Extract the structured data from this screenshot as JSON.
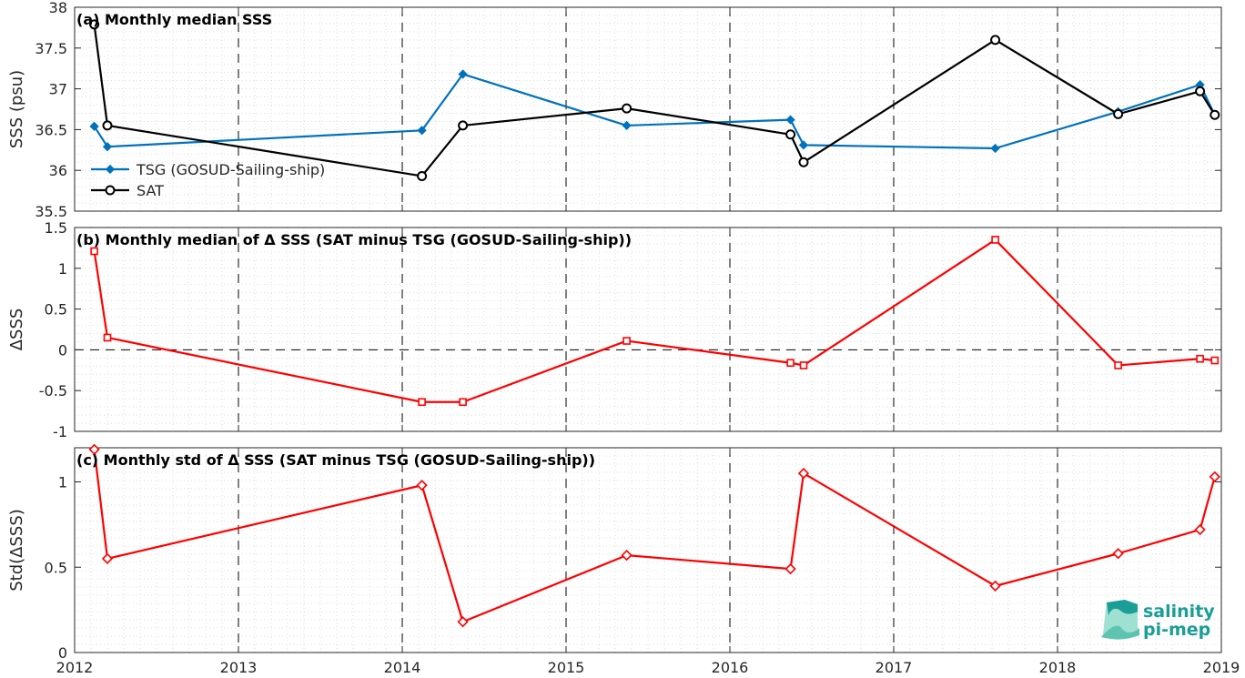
{
  "logo": {
    "line1": "salinity",
    "line2": "pi-mep"
  },
  "colors": {
    "tsg": "#0072BD",
    "sat": "#000000",
    "delta": "#FF0000",
    "logo": "#1a9e96"
  },
  "chart_data": [
    {
      "type": "line",
      "title": "(a) Monthly median SSS",
      "ylabel": "SSS (psu)",
      "xlim": [
        2012,
        2019
      ],
      "ylim": [
        35.5,
        38
      ],
      "yticks": [
        35.5,
        36,
        36.5,
        37,
        37.5,
        38
      ],
      "ytick_labels": [
        "35.5",
        "36",
        "36.5",
        "37",
        "37.5",
        "38"
      ],
      "grid": true,
      "legend": "middle-left",
      "series": [
        {
          "name": "TSG (GOSUD-Sailing-ship)",
          "marker": "diamond-filled",
          "x": [
            2012.12,
            2012.2,
            2014.12,
            2014.37,
            2015.37,
            2016.37,
            2016.45,
            2017.62,
            2018.37,
            2018.87,
            2018.96
          ],
          "y": [
            36.54,
            36.29,
            36.49,
            37.18,
            36.55,
            36.62,
            36.31,
            36.27,
            36.72,
            37.05,
            36.68
          ]
        },
        {
          "name": "SAT",
          "marker": "circle-open",
          "x": [
            2012.12,
            2012.2,
            2014.12,
            2014.37,
            2015.37,
            2016.37,
            2016.45,
            2017.62,
            2018.37,
            2018.87,
            2018.96
          ],
          "y": [
            37.79,
            36.55,
            35.93,
            36.55,
            36.76,
            36.44,
            36.1,
            37.6,
            36.69,
            36.97,
            36.68
          ]
        }
      ]
    },
    {
      "type": "line",
      "title": "(b) Monthly median of Δ SSS (SAT minus TSG (GOSUD-Sailing-ship))",
      "ylabel": "ΔSSS",
      "xlim": [
        2012,
        2019
      ],
      "ylim": [
        -1,
        1.5
      ],
      "yticks": [
        -1,
        -0.5,
        0,
        0.5,
        1,
        1.5
      ],
      "ytick_labels": [
        "-1",
        "-0.5",
        "0",
        "0.5",
        "1",
        "1.5"
      ],
      "grid": true,
      "zero_line": true,
      "series": [
        {
          "marker": "square-open",
          "x": [
            2012.12,
            2012.2,
            2014.12,
            2014.37,
            2015.37,
            2016.37,
            2016.45,
            2017.62,
            2018.37,
            2018.87,
            2018.96
          ],
          "y": [
            1.21,
            0.15,
            -0.64,
            -0.64,
            0.11,
            -0.16,
            -0.19,
            1.35,
            -0.19,
            -0.11,
            -0.13
          ]
        }
      ]
    },
    {
      "type": "line",
      "title": "(c) Monthly std of Δ SSS (SAT minus TSG (GOSUD-Sailing-ship))",
      "ylabel": "Std(ΔSSS)",
      "xlim": [
        2012,
        2019
      ],
      "ylim": [
        0,
        1.2
      ],
      "yticks": [
        0,
        0.5,
        1
      ],
      "ytick_labels": [
        "0",
        "0.5",
        "1"
      ],
      "xticks": [
        2012,
        2013,
        2014,
        2015,
        2016,
        2017,
        2018,
        2019
      ],
      "xtick_labels": [
        "2012",
        "2013",
        "2014",
        "2015",
        "2016",
        "2017",
        "2018",
        "2019"
      ],
      "grid": true,
      "series": [
        {
          "marker": "diamond-open",
          "x": [
            2012.12,
            2012.2,
            2014.12,
            2014.37,
            2015.37,
            2016.37,
            2016.45,
            2017.62,
            2018.37,
            2018.87,
            2018.96
          ],
          "y": [
            1.19,
            0.55,
            0.98,
            0.18,
            0.57,
            0.49,
            1.05,
            0.39,
            0.58,
            0.72,
            1.03
          ]
        }
      ]
    }
  ]
}
